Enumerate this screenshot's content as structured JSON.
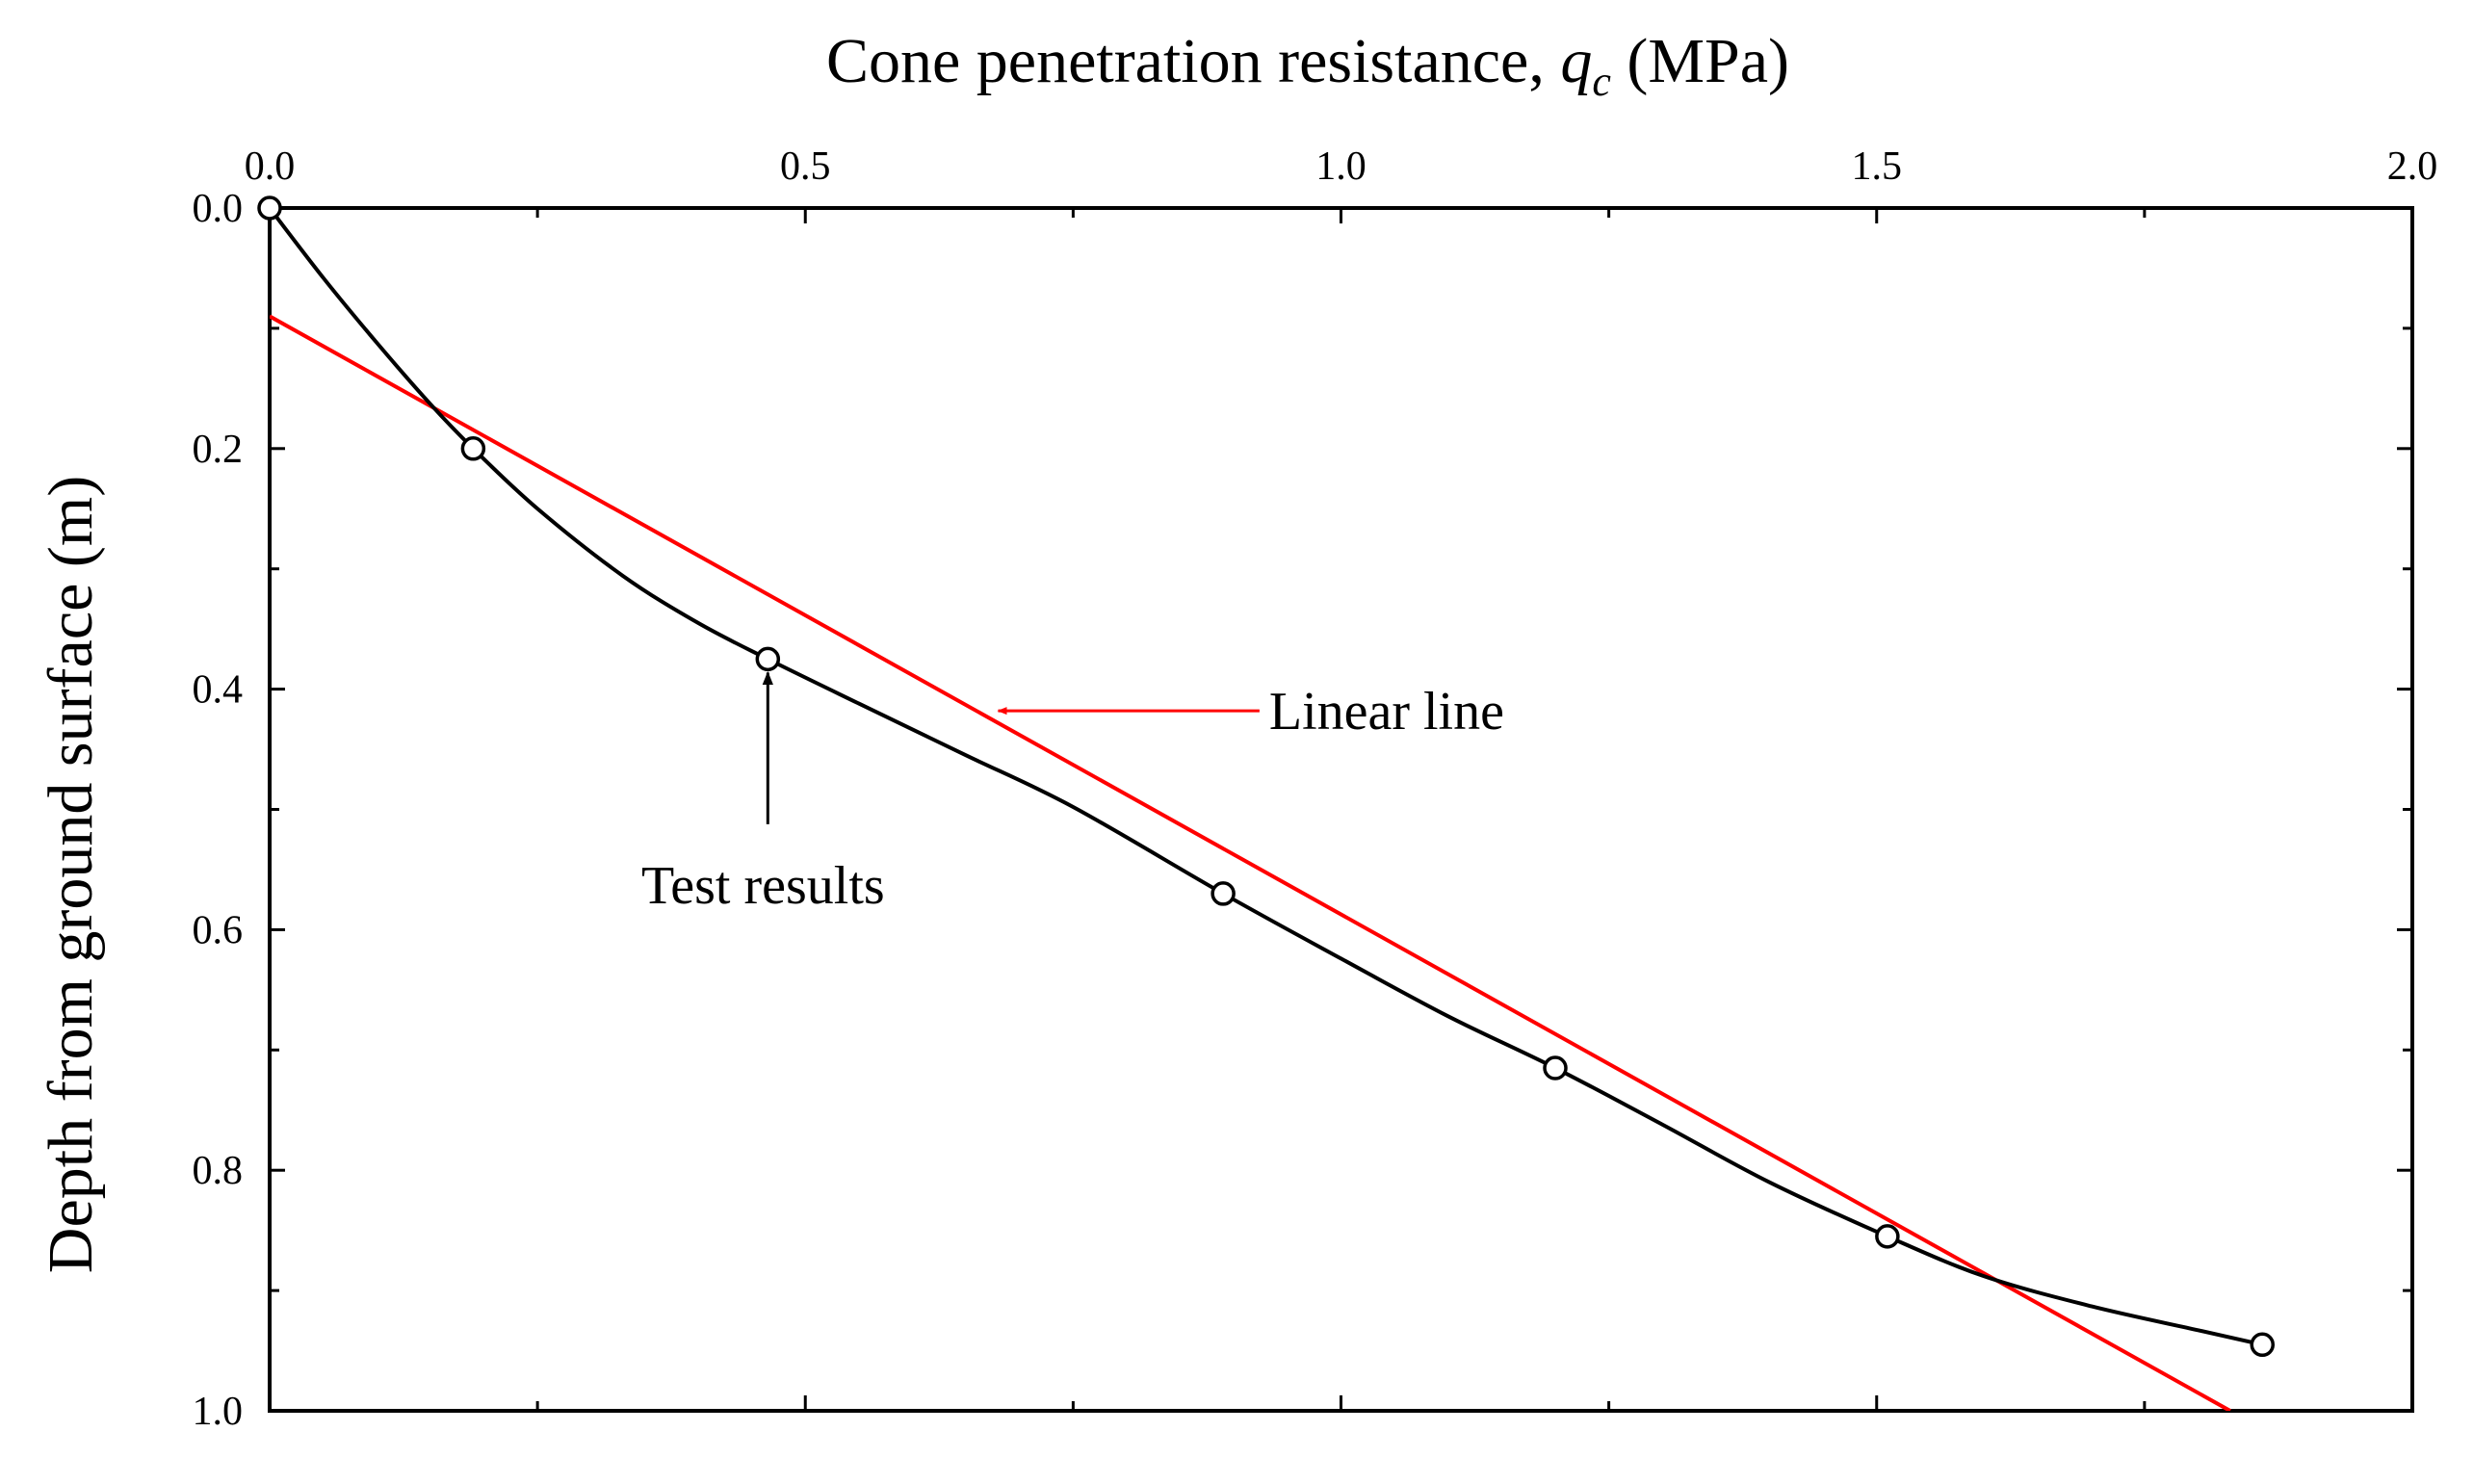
{
  "chart_data": {
    "type": "scatter",
    "xlabel": {
      "prefix": "Cone penetration resistance, ",
      "symbol": "q",
      "subscript": "c",
      "unit": " (MPa)"
    },
    "ylabel": "Depth from ground surface (m)",
    "xlim": [
      0.0,
      2.0
    ],
    "ylim": [
      0.0,
      1.0
    ],
    "x_axis_position": "top",
    "y_axis_inverted": true,
    "grid": false,
    "x_ticks": [
      {
        "value": 0.0,
        "label": "0.0"
      },
      {
        "value": 0.5,
        "label": "0.5"
      },
      {
        "value": 1.0,
        "label": "1.0"
      },
      {
        "value": 1.5,
        "label": "1.5"
      },
      {
        "value": 2.0,
        "label": "2.0"
      }
    ],
    "y_ticks": [
      {
        "value": 0.0,
        "label": "0.0"
      },
      {
        "value": 0.2,
        "label": "0.2"
      },
      {
        "value": 0.4,
        "label": "0.4"
      },
      {
        "value": 0.6,
        "label": "0.6"
      },
      {
        "value": 0.8,
        "label": "0.8"
      },
      {
        "value": 1.0,
        "label": "1.0"
      }
    ],
    "series": [
      {
        "name": "Test results",
        "color": "#000000",
        "marker": "open-circle",
        "x": [
          0.0,
          0.19,
          0.465,
          0.89,
          1.2,
          1.51,
          1.86
        ],
        "y": [
          0.0,
          0.2,
          0.375,
          0.57,
          0.715,
          0.855,
          0.945
        ],
        "curve": {
          "x": [
            0.0,
            0.05,
            0.1,
            0.15,
            0.19,
            0.25,
            0.33,
            0.4,
            0.465,
            0.55,
            0.65,
            0.75,
            0.89,
            1.0,
            1.1,
            1.2,
            1.3,
            1.4,
            1.51,
            1.6,
            1.7,
            1.8,
            1.86
          ],
          "y": [
            0.0,
            0.058,
            0.112,
            0.163,
            0.2,
            0.25,
            0.306,
            0.345,
            0.375,
            0.412,
            0.455,
            0.498,
            0.57,
            0.624,
            0.672,
            0.715,
            0.762,
            0.81,
            0.855,
            0.888,
            0.913,
            0.933,
            0.945
          ]
        },
        "annotation": {
          "text": "Test results",
          "point": [
            0.465,
            0.375
          ],
          "text_at": [
            0.465,
            0.57
          ]
        }
      },
      {
        "name": "Linear line",
        "color": "#ff0000",
        "marker": "none",
        "x": [
          0.0,
          1.83
        ],
        "y": [
          0.09,
          1.0
        ],
        "annotation": {
          "text": "Linear line",
          "point": [
            0.68,
            0.418
          ],
          "text_at": [
            0.87,
            0.418
          ]
        }
      }
    ]
  }
}
